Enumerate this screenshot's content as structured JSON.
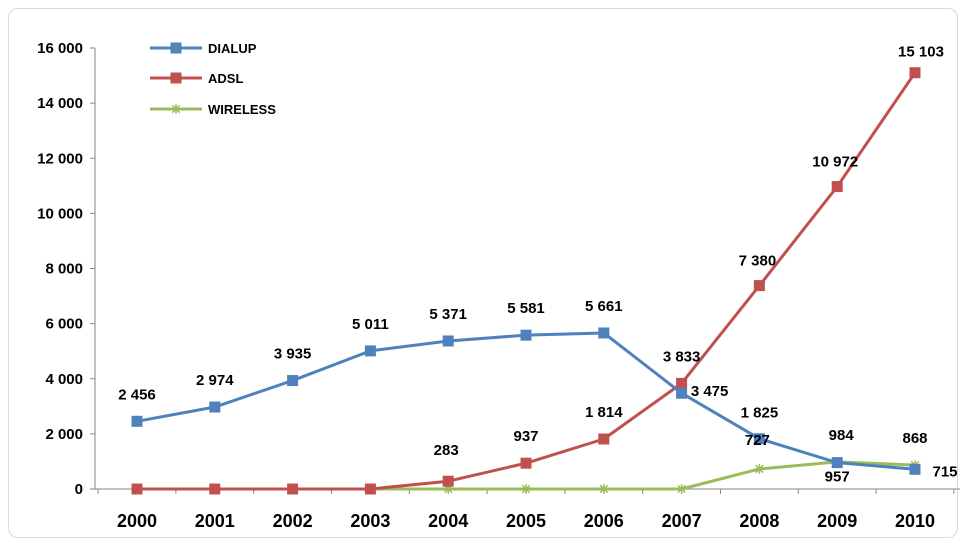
{
  "chart_data": {
    "type": "line",
    "title": "",
    "xlabel": "",
    "ylabel": "",
    "categories": [
      "2000",
      "2001",
      "2002",
      "2003",
      "2004",
      "2005",
      "2006",
      "2007",
      "2008",
      "2009",
      "2010"
    ],
    "ylim": [
      0,
      16000
    ],
    "y_ticks": [
      0,
      2000,
      4000,
      6000,
      8000,
      10000,
      12000,
      14000,
      16000
    ],
    "y_tick_labels": [
      "0",
      "2 000",
      "4 000",
      "6 000",
      "8 000",
      "10 000",
      "12 000",
      "14 000",
      "16 000"
    ],
    "grid": false,
    "legend_position": "top-left",
    "series": [
      {
        "name": "DIALUP",
        "color": "#4f81bd",
        "marker": "square",
        "values": [
          2456,
          2974,
          3935,
          5011,
          5371,
          5581,
          5661,
          3475,
          1825,
          957,
          715
        ],
        "labels": [
          "2 456",
          "2 974",
          "3 935",
          "5 011",
          "5 371",
          "5 581",
          "5 661",
          "3 475",
          "1 825",
          "957",
          "715"
        ]
      },
      {
        "name": "ADSL",
        "color": "#c0504d",
        "marker": "square",
        "values": [
          0,
          0,
          0,
          0,
          283,
          937,
          1814,
          3833,
          7380,
          10972,
          15103
        ],
        "labels": [
          "",
          "",
          "",
          "",
          "283",
          "937",
          "1 814",
          "3 833",
          "7 380",
          "10 972",
          "15 103"
        ]
      },
      {
        "name": "WIRELESS",
        "color": "#9bbb59",
        "marker": "star",
        "values": [
          0,
          0,
          0,
          0,
          0,
          0,
          0,
          0,
          727,
          984,
          868
        ],
        "labels": [
          "",
          "",
          "",
          "",
          "",
          "",
          "",
          "",
          "727",
          "984",
          "868"
        ]
      }
    ]
  }
}
